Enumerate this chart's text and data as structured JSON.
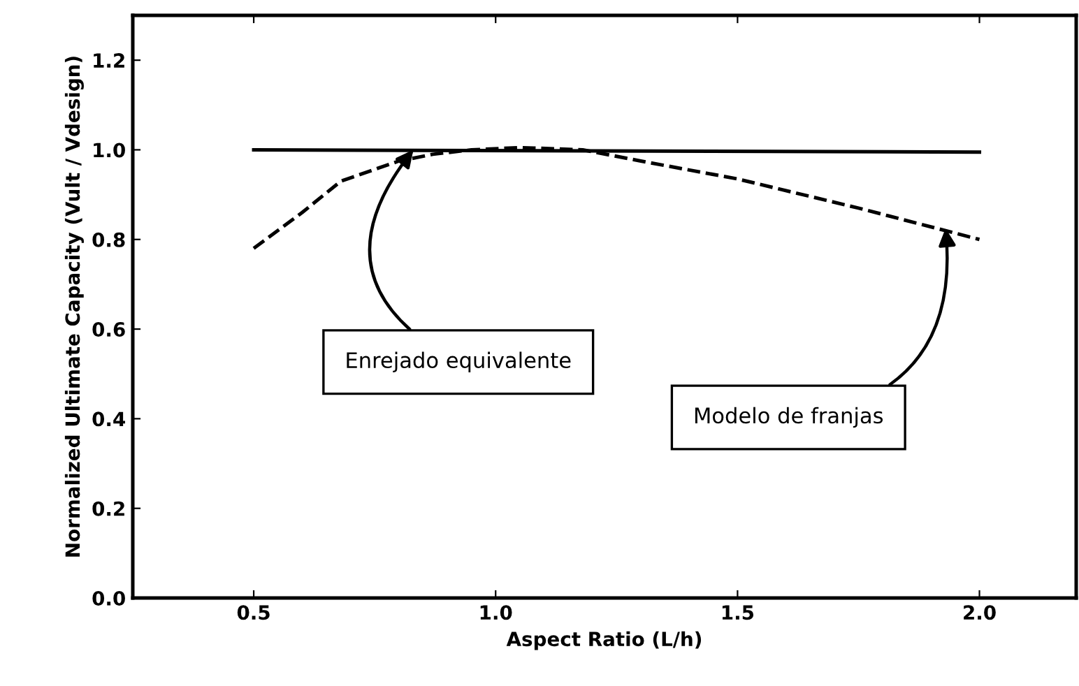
{
  "chart_data": {
    "type": "line",
    "xlabel": "Aspect Ratio (L/h)",
    "ylabel": "Normalized Ultimate Capacity (Vult / Vdesign)",
    "xlim": [
      0.25,
      2.2
    ],
    "xticks": [
      {
        "value": 0.5,
        "label": "0.5"
      },
      {
        "value": 1.0,
        "label": "1.0"
      },
      {
        "value": 1.5,
        "label": "1.5"
      },
      {
        "value": 2.0,
        "label": "2.0"
      }
    ],
    "ylim": [
      0,
      1.3
    ],
    "yticks": [
      {
        "value": 0,
        "label": "0.0"
      },
      {
        "value": 0.2,
        "label": "0.2"
      },
      {
        "value": 0.4,
        "label": "0.4"
      },
      {
        "value": 0.6,
        "label": "0.6"
      },
      {
        "value": 0.8,
        "label": "0.8"
      },
      {
        "value": 1.0,
        "label": "1.0"
      },
      {
        "value": 1.2,
        "label": "1.2"
      }
    ],
    "grid": false,
    "marker": "none",
    "series": [
      {
        "color": "#000000",
        "line_style": "solid",
        "x": [
          0.5,
          2.0
        ],
        "values": [
          1.0,
          0.995
        ]
      },
      {
        "color": "#000000",
        "line_style": "dashed",
        "x": [
          0.5,
          0.6,
          0.68,
          0.8,
          0.87,
          0.95,
          1.05,
          1.18,
          1.3,
          1.5,
          1.75,
          2.0
        ],
        "values": [
          0.78,
          0.86,
          0.93,
          0.975,
          0.99,
          1.0,
          1.005,
          1.0,
          0.975,
          0.935,
          0.87,
          0.8
        ]
      }
    ],
    "annotations": [
      {
        "text": "Enrejado equivalente",
        "x": 0.83,
        "y": 1.0
      },
      {
        "text": "Modelo de franjas",
        "x": 1.93,
        "y": 0.825
      }
    ]
  }
}
